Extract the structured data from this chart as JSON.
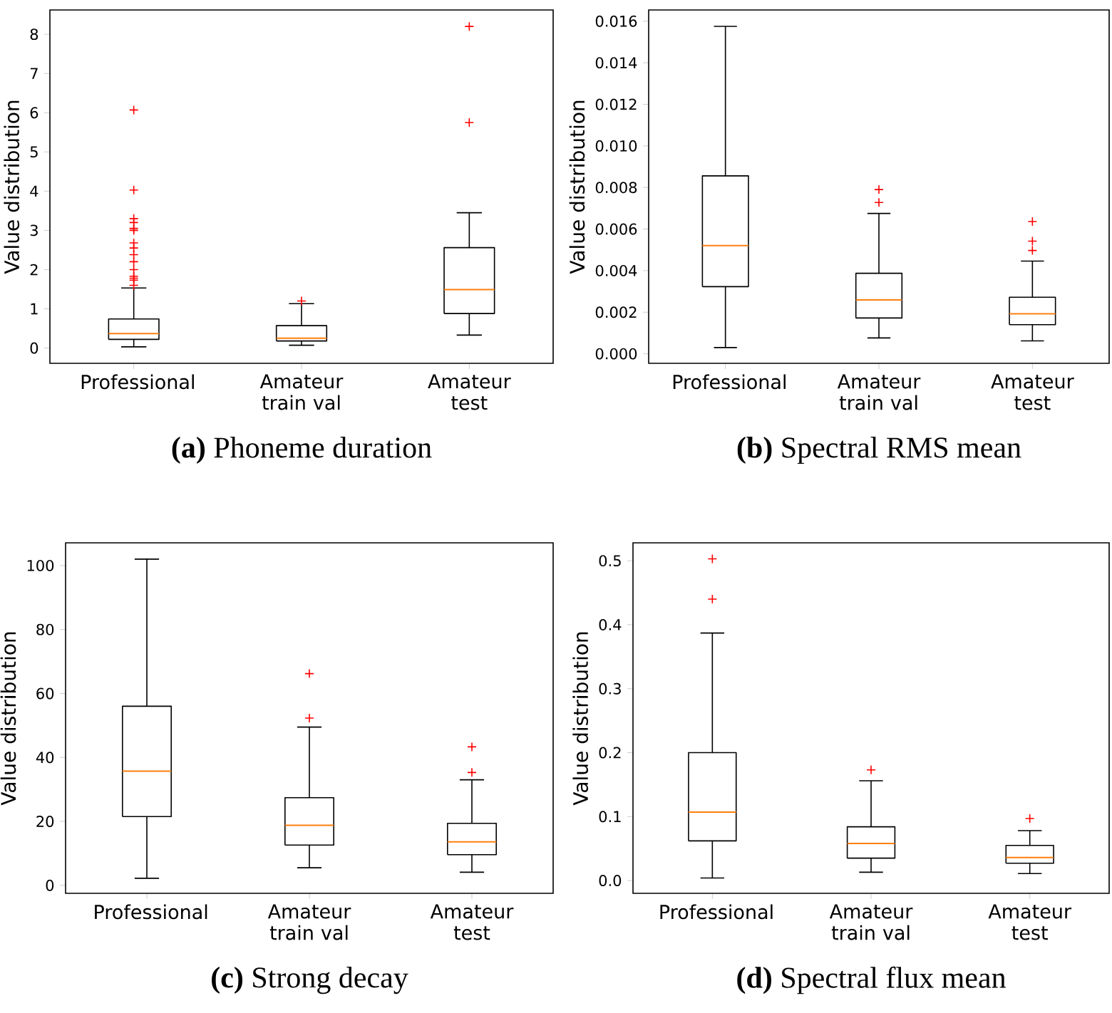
{
  "chart_data": [
    {
      "type": "box",
      "title": "**(a)** Phoneme duration",
      "ylabel": "Value distribution",
      "categories": [
        "Professional",
        "Amateur train val",
        "Amateur test"
      ],
      "boxes": [
        {
          "low": 0.03,
          "q1": 0.22,
          "median": 0.37,
          "q3": 0.74,
          "high": 1.53,
          "outliers": [
            6.07,
            4.03,
            3.3,
            3.2,
            3.05,
            3.0,
            2.68,
            2.55,
            2.38,
            2.2,
            2.0,
            1.83,
            1.78,
            1.73,
            1.6
          ]
        },
        {
          "low": 0.07,
          "q1": 0.18,
          "median": 0.25,
          "q3": 0.57,
          "high": 1.13,
          "outliers": [
            1.2
          ]
        },
        {
          "low": 0.33,
          "q1": 0.88,
          "median": 1.49,
          "q3": 2.56,
          "high": 3.45,
          "outliers": [
            5.75,
            8.2
          ]
        }
      ],
      "ylim": [
        -0.39,
        8.62
      ],
      "yticks": [
        0,
        1,
        2,
        3,
        4,
        5,
        6,
        7,
        8
      ]
    },
    {
      "type": "box",
      "title": "**(b)** Spectral RMS mean",
      "ylabel": "Value distribution",
      "categories": [
        "Professional",
        "Amateur train val",
        "Amateur test"
      ],
      "boxes": [
        {
          "low": 0.0003,
          "q1": 0.00323,
          "median": 0.0052,
          "q3": 0.00856,
          "high": 0.01575
        },
        {
          "low": 0.00076,
          "q1": 0.00172,
          "median": 0.00259,
          "q3": 0.00387,
          "high": 0.00675,
          "outliers": [
            0.00728,
            0.0079
          ]
        },
        {
          "low": 0.00062,
          "q1": 0.0014,
          "median": 0.00192,
          "q3": 0.00272,
          "high": 0.00446,
          "outliers": [
            0.00497,
            0.00542,
            0.00636
          ]
        }
      ],
      "ylim": [
        -0.00046,
        0.01654
      ],
      "yticks": [
        {
          "value": 0,
          "label": "0.000"
        },
        {
          "value": 0.002,
          "label": "0.002"
        },
        {
          "value": 0.004,
          "label": "0.004"
        },
        {
          "value": 0.006,
          "label": "0.006"
        },
        {
          "value": 0.008,
          "label": "0.008"
        },
        {
          "value": 0.01,
          "label": "0.010"
        },
        {
          "value": 0.012,
          "label": "0.012"
        },
        {
          "value": 0.014,
          "label": "0.014"
        },
        {
          "value": 0.016,
          "label": "0.016"
        }
      ]
    },
    {
      "type": "box",
      "title": "**(c)** Strong decay",
      "ylabel": "Value distribution",
      "categories": [
        "Professional",
        "Amateur train val",
        "Amateur test"
      ],
      "boxes": [
        {
          "low": 2.2,
          "q1": 21.5,
          "median": 35.7,
          "q3": 56,
          "high": 102
        },
        {
          "low": 5.5,
          "q1": 12.6,
          "median": 18.8,
          "q3": 27.4,
          "high": 49.5,
          "outliers": [
            52.3,
            66.2
          ]
        },
        {
          "low": 4.1,
          "q1": 9.6,
          "median": 13.6,
          "q3": 19.4,
          "high": 33.0,
          "outliers": [
            35.3,
            43.3
          ]
        }
      ],
      "ylim": [
        -2.5,
        107.1
      ],
      "yticks": [
        0,
        20,
        40,
        60,
        80,
        100
      ]
    },
    {
      "type": "box",
      "title": "**(d)** Spectral flux mean",
      "ylabel": "Value distribution",
      "categories": [
        "Professional",
        "Amateur train val",
        "Amateur test"
      ],
      "boxes": [
        {
          "low": 0.004,
          "q1": 0.062,
          "median": 0.107,
          "q3": 0.2,
          "high": 0.387,
          "outliers": [
            0.44,
            0.503
          ]
        },
        {
          "low": 0.013,
          "q1": 0.035,
          "median": 0.058,
          "q3": 0.084,
          "high": 0.156,
          "outliers": [
            0.173
          ]
        },
        {
          "low": 0.011,
          "q1": 0.027,
          "median": 0.036,
          "q3": 0.055,
          "high": 0.078,
          "outliers": [
            0.097
          ]
        }
      ],
      "ylim": [
        -0.02,
        0.528
      ],
      "yticks": [
        {
          "value": 0,
          "label": "0.0"
        },
        {
          "value": 0.1,
          "label": "0.1"
        },
        {
          "value": 0.2,
          "label": "0.2"
        },
        {
          "value": 0.3,
          "label": "0.3"
        },
        {
          "value": 0.4,
          "label": "0.4"
        },
        {
          "value": 0.5,
          "label": "0.5"
        }
      ]
    }
  ]
}
